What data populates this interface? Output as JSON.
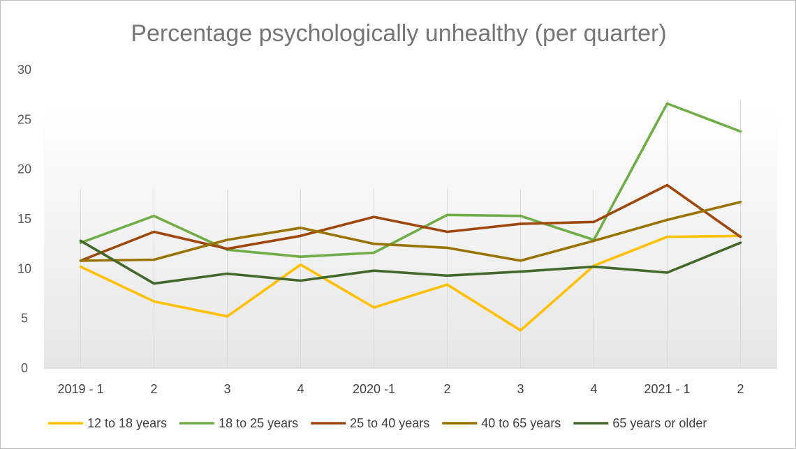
{
  "chart_data": {
    "type": "line",
    "title": "Percentage psychologically unhealthy (per quarter)",
    "xlabel": "",
    "ylabel": "",
    "categories": [
      "2019 - 1",
      "2",
      "3",
      "4",
      "2020 -1",
      "2",
      "3",
      "4",
      "2021 - 1",
      "2"
    ],
    "ylim": [
      0,
      30
    ],
    "yticks": [
      0,
      5,
      10,
      15,
      20,
      25,
      30
    ],
    "grid": "vertical",
    "legend_position": "bottom",
    "series": [
      {
        "name": "12 to 18 years",
        "color": "#FFC000",
        "values": [
          10.2,
          6.7,
          5.2,
          10.4,
          6.1,
          8.4,
          3.8,
          10.3,
          13.2,
          13.3
        ]
      },
      {
        "name": "18 to 25 years",
        "color": "#70AD47",
        "values": [
          12.6,
          15.3,
          11.9,
          11.2,
          11.6,
          15.4,
          15.3,
          12.9,
          26.6,
          23.8
        ]
      },
      {
        "name": "25 to 40 years",
        "color": "#9E480E",
        "values": [
          10.8,
          13.7,
          12.0,
          13.3,
          15.2,
          13.7,
          14.5,
          14.7,
          18.4,
          13.2
        ]
      },
      {
        "name": "40 to 65 years",
        "color": "#997300",
        "values": [
          10.8,
          10.9,
          12.9,
          14.1,
          12.5,
          12.1,
          10.8,
          12.8,
          14.9,
          16.7
        ]
      },
      {
        "name": "65 years or older",
        "color": "#43682B",
        "values": [
          12.8,
          8.5,
          9.5,
          8.8,
          9.8,
          9.3,
          9.7,
          10.2,
          9.6,
          12.6
        ]
      }
    ]
  }
}
